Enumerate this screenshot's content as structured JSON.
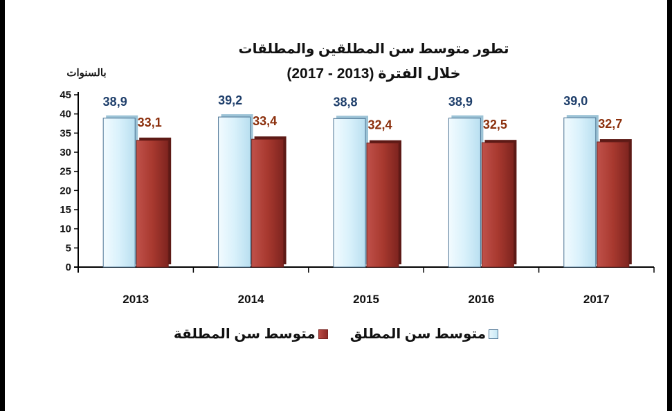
{
  "chart_data": {
    "type": "bar",
    "title_line1": "تطور متوسط سن المطلقين والمطلقات",
    "title_line2": "خلال الفترة (2013 - 2017)",
    "ylabel": "بالسنوات",
    "xlabel": "",
    "categories": [
      "2013",
      "2014",
      "2015",
      "2016",
      "2017"
    ],
    "series": [
      {
        "name": "متوسط سن المطلق",
        "values": [
          38.9,
          39.2,
          38.8,
          38.9,
          39.0
        ],
        "labels": [
          "38,9",
          "39,2",
          "38,8",
          "38,9",
          "39,0"
        ],
        "color": "#d6eff9",
        "label_color": "#1f3f6b"
      },
      {
        "name": "متوسط سن المطلقة",
        "values": [
          33.1,
          33.4,
          32.4,
          32.5,
          32.7
        ],
        "labels": [
          "33,1",
          "33,4",
          "32,4",
          "32,5",
          "32,7"
        ],
        "color": "#a8392f",
        "label_color": "#8b2f0c"
      }
    ],
    "yticks": [
      "0",
      "5",
      "10",
      "15",
      "20",
      "25",
      "30",
      "35",
      "40",
      "45"
    ],
    "ylim": [
      0,
      45
    ],
    "grid": false,
    "legend_position": "bottom"
  },
  "legend": {
    "blue_label": "متوسط سن المطلق",
    "red_label": "متوسط سن المطلقة"
  },
  "decor": {
    "left_edge": "#000000",
    "right_edge": "#000000"
  }
}
